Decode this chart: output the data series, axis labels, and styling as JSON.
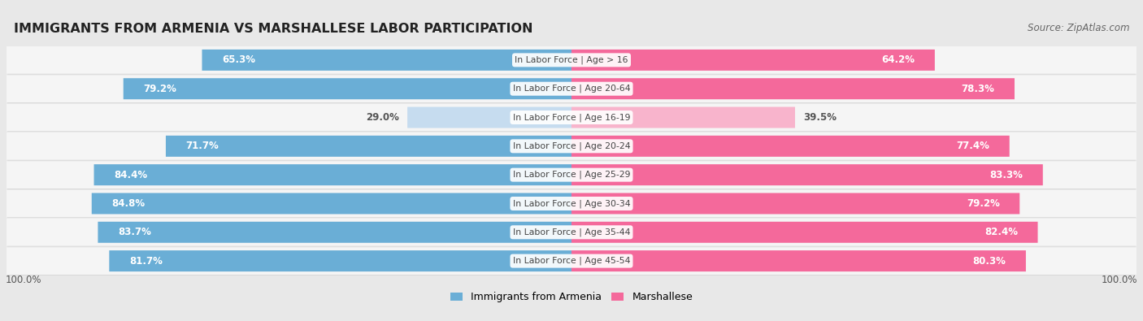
{
  "title": "IMMIGRANTS FROM ARMENIA VS MARSHALLESE LABOR PARTICIPATION",
  "source": "Source: ZipAtlas.com",
  "categories": [
    "In Labor Force | Age > 16",
    "In Labor Force | Age 20-64",
    "In Labor Force | Age 16-19",
    "In Labor Force | Age 20-24",
    "In Labor Force | Age 25-29",
    "In Labor Force | Age 30-34",
    "In Labor Force | Age 35-44",
    "In Labor Force | Age 45-54"
  ],
  "armenia_values": [
    65.3,
    79.2,
    29.0,
    71.7,
    84.4,
    84.8,
    83.7,
    81.7
  ],
  "marshallese_values": [
    64.2,
    78.3,
    39.5,
    77.4,
    83.3,
    79.2,
    82.4,
    80.3
  ],
  "armenia_color_strong": "#6aaed6",
  "armenia_color_weak": "#c6dcef",
  "marshallese_color_strong": "#f4699b",
  "marshallese_color_weak": "#f8b4cc",
  "background_color": "#e8e8e8",
  "row_bg_color": "#f5f5f5",
  "row_border_color": "#dddddd",
  "label_color_white": "#ffffff",
  "label_color_dark": "#555555",
  "center_label_color": "#444444",
  "max_value": 100.0,
  "legend_armenia": "Immigrants from Armenia",
  "legend_marshallese": "Marshallese",
  "bottom_left_label": "100.0%",
  "bottom_right_label": "100.0%",
  "weak_threshold": 50
}
